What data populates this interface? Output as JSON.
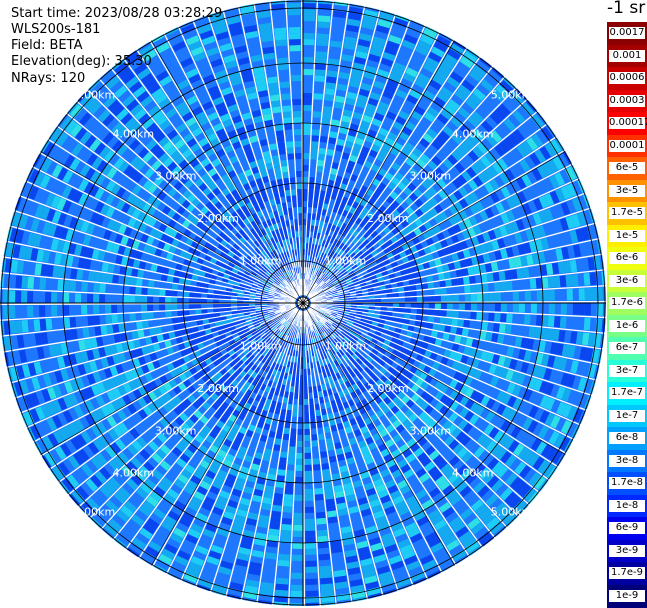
{
  "header": {
    "start_time": "Start time: 2023/08/28 03:28:29",
    "instrument": "WLS200s-181",
    "field": "Field: BETA",
    "elevation": "Elevation(deg): 35.30",
    "nrays": "NRays: 120"
  },
  "colorbar": {
    "unit": "-1 sr",
    "labels": [
      "0.0017",
      "0.001",
      "0.0006",
      "0.0003",
      "0.00017",
      "0.0001",
      "6e-5",
      "3e-5",
      "1.7e-5",
      "1e-5",
      "6e-6",
      "3e-6",
      "1.7e-6",
      "1e-6",
      "6e-7",
      "3e-7",
      "1.7e-7",
      "1e-7",
      "6e-8",
      "3e-8",
      "1.7e-8",
      "1e-8",
      "6e-9",
      "3e-9",
      "1.7e-9",
      "1e-9"
    ],
    "colors": [
      "#8b0000",
      "#a50000",
      "#c80000",
      "#e60000",
      "#ff0000",
      "#ff3000",
      "#ff6000",
      "#ff9000",
      "#ffc000",
      "#ffee00",
      "#f0ff10",
      "#c8ff38",
      "#a0ff60",
      "#78ff88",
      "#50ffb0",
      "#28ffd8",
      "#00f0ff",
      "#00c8ff",
      "#00a0ff",
      "#0078ff",
      "#0050ff",
      "#0028ff",
      "#0000f0",
      "#0000c8",
      "#0000a0",
      "#000078"
    ]
  },
  "range_labels": [
    "1.00km",
    "2.00km",
    "3.00km",
    "4.00km",
    "5.00km"
  ],
  "map_overlay": {
    "background_color": "#1e78ff",
    "accent_colors": [
      "#0a46f0",
      "#14aaf0",
      "#1ecdf5",
      "#2ee0e6"
    ]
  }
}
